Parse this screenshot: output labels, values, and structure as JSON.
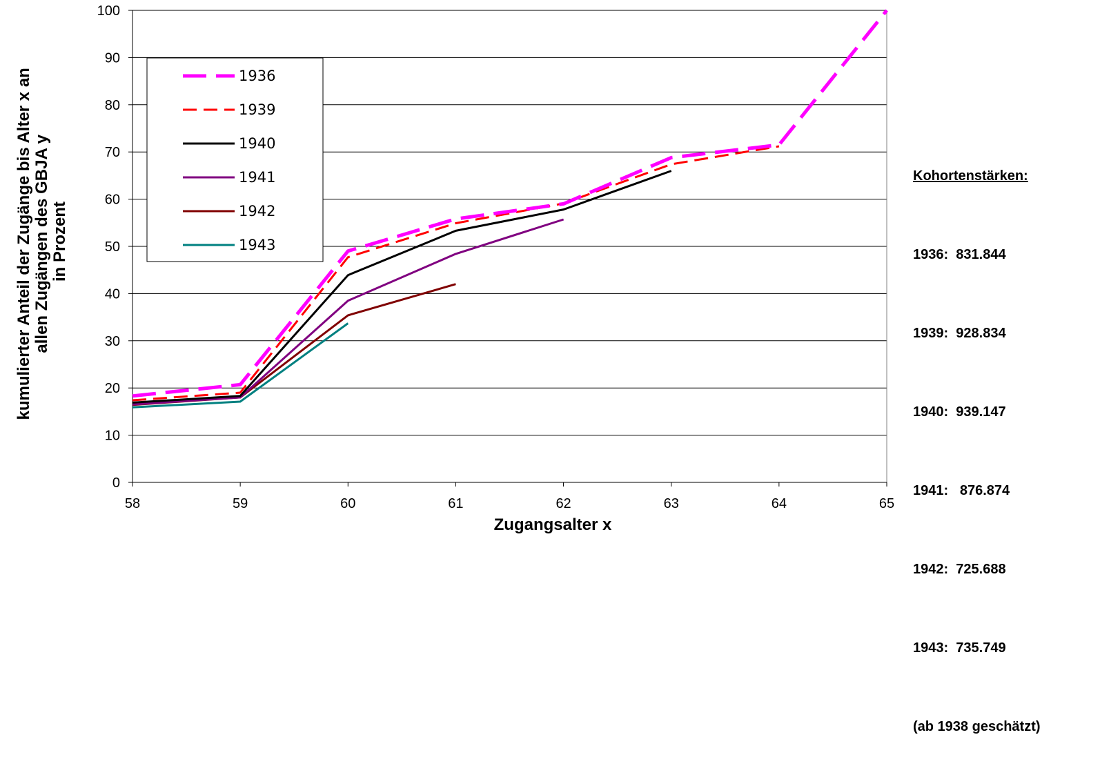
{
  "chart_data": {
    "type": "line",
    "xlabel": "Zugangsalter x",
    "ylabel_lines": [
      "kumulierter Anteil der Zugänge bis Alter x an",
      "allen Zugängen des GBJA y",
      "in Prozent"
    ],
    "xlim": [
      58,
      65
    ],
    "ylim": [
      0,
      100
    ],
    "x_ticks": [
      58,
      59,
      60,
      61,
      62,
      63,
      64,
      65
    ],
    "y_ticks": [
      0,
      10,
      20,
      30,
      40,
      50,
      60,
      70,
      80,
      90,
      100
    ],
    "grid": "horizontal",
    "legend_position": "top-left",
    "series": [
      {
        "name": "1936",
        "color": "#FF00FF",
        "style": "long-dash-thick",
        "x": [
          58,
          59,
          60,
          61,
          62,
          63,
          64,
          65
        ],
        "y": [
          18.3,
          20.7,
          49.0,
          55.8,
          59.0,
          68.8,
          71.5,
          100
        ]
      },
      {
        "name": "1939",
        "color": "#FF0000",
        "style": "dash",
        "x": [
          58,
          59,
          60,
          61,
          62,
          63,
          64
        ],
        "y": [
          17.4,
          19.0,
          47.7,
          54.9,
          59.1,
          67.4,
          71.2
        ]
      },
      {
        "name": "1940",
        "color": "#000000",
        "style": "solid",
        "x": [
          58,
          59,
          60,
          61,
          62,
          63
        ],
        "y": [
          16.9,
          18.3,
          43.9,
          53.3,
          57.8,
          66.0
        ]
      },
      {
        "name": "1941",
        "color": "#800080",
        "style": "solid",
        "x": [
          58,
          59,
          60,
          61,
          62
        ],
        "y": [
          16.5,
          18.0,
          38.5,
          48.4,
          55.7
        ]
      },
      {
        "name": "1942",
        "color": "#800000",
        "style": "solid",
        "x": [
          58,
          59,
          60,
          61
        ],
        "y": [
          16.4,
          18.0,
          35.4,
          42.0
        ]
      },
      {
        "name": "1943",
        "color": "#008080",
        "style": "solid",
        "x": [
          58,
          59,
          60
        ],
        "y": [
          15.9,
          17.1,
          33.7
        ]
      }
    ]
  },
  "side_note": {
    "title": "Kohortenstärken:",
    "lines": [
      "1936:  831.844",
      "1939:  928.834",
      "1940:  939.147",
      "1941:   876.874",
      "1942:  725.688",
      "1943:  735.749",
      "(ab 1938 geschätzt)"
    ]
  }
}
